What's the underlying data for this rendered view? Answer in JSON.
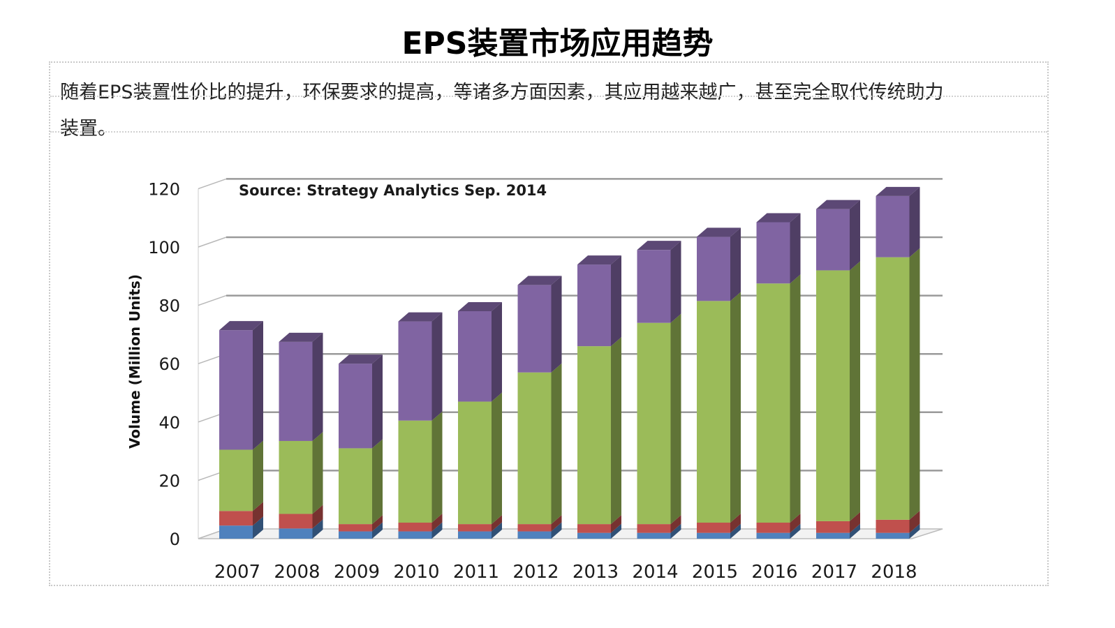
{
  "page": {
    "title": "EPS装置市场应用趋势",
    "paragraph_line1": "随着EPS装置性价比的提升，环保要求的提高，等诸多方面因素，其应用越来越广，甚至完全取代传统助力",
    "paragraph_line2": "装置。"
  },
  "chart_data": {
    "type": "bar",
    "stacked": true,
    "three_d": true,
    "title": "",
    "annotation": "Source: Strategy Analytics Sep. 2014",
    "xlabel": "",
    "ylabel": "Volume (Million Units)",
    "ylim": [
      0,
      120
    ],
    "yticks": [
      0,
      20,
      40,
      60,
      80,
      100,
      120
    ],
    "grid": true,
    "legend": "none",
    "categories": [
      "2007",
      "2008",
      "2009",
      "2010",
      "2011",
      "2012",
      "2013",
      "2014",
      "2015",
      "2016",
      "2017",
      "2018"
    ],
    "series": [
      {
        "color": "#4f81bd",
        "values": [
          4.5,
          3.5,
          2.5,
          2.5,
          2.5,
          2.5,
          2,
          2,
          2,
          2,
          2,
          2
        ]
      },
      {
        "color": "#c0504d",
        "values": [
          5,
          5,
          2.5,
          3,
          2.5,
          2.5,
          3,
          3,
          3.5,
          3.5,
          4,
          4.5
        ]
      },
      {
        "color": "#9bbb59",
        "values": [
          21,
          25,
          26,
          35,
          42,
          52,
          61,
          69,
          76,
          82,
          86,
          90
        ]
      },
      {
        "color": "#8064a2",
        "values": [
          41,
          34,
          29,
          34,
          31,
          30,
          28,
          25,
          22,
          21,
          21,
          21
        ]
      }
    ]
  }
}
